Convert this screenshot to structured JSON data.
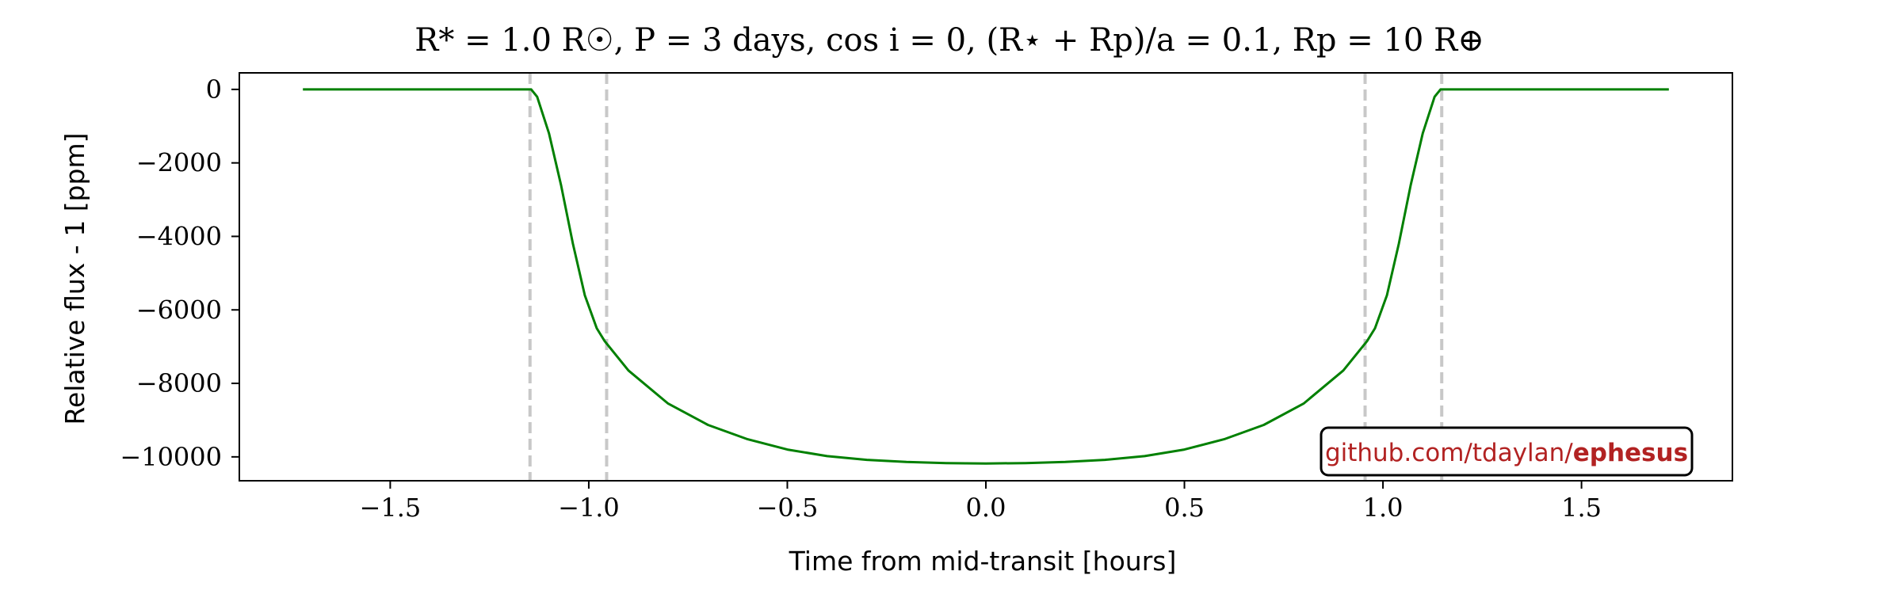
{
  "chart_data": {
    "type": "line",
    "title": "R* = 1.0 R☉, P = 3 days, cos i = 0, (R⋆ + Rp)/a = 0.1, Rp = 10 R⊕",
    "xlabel": "Time from mid-transit [hours]",
    "ylabel": "Relative flux - 1 [ppm]",
    "xlim": [
      -1.88,
      1.88
    ],
    "ylim": [
      -10650,
      450
    ],
    "x_ticks": [
      -1.5,
      -1.0,
      -0.5,
      0.0,
      0.5,
      1.0,
      1.5
    ],
    "x_tick_labels": [
      "−1.5",
      "−1.0",
      "−0.5",
      "0.0",
      "0.5",
      "1.0",
      "1.5"
    ],
    "y_ticks": [
      0,
      -2000,
      -4000,
      -6000,
      -8000,
      -10000
    ],
    "y_tick_labels": [
      "0",
      "−2000",
      "−4000",
      "−6000",
      "−8000",
      "−10000"
    ],
    "grid": false,
    "series": [
      {
        "color": "#008000",
        "x": [
          -1.72,
          -1.5,
          -1.3,
          -1.16,
          -1.145,
          -1.13,
          -1.1,
          -1.07,
          -1.04,
          -1.01,
          -0.98,
          -0.96,
          -0.9,
          -0.8,
          -0.7,
          -0.6,
          -0.5,
          -0.4,
          -0.3,
          -0.2,
          -0.1,
          0.0,
          0.1,
          0.2,
          0.3,
          0.4,
          0.5,
          0.6,
          0.7,
          0.8,
          0.9,
          0.96,
          0.98,
          1.01,
          1.04,
          1.07,
          1.1,
          1.13,
          1.145,
          1.16,
          1.3,
          1.5,
          1.72
        ],
        "y": [
          0,
          0,
          0,
          0,
          0,
          -200,
          -1200,
          -2600,
          -4200,
          -5600,
          -6500,
          -6850,
          -7650,
          -8550,
          -9130,
          -9520,
          -9800,
          -9980,
          -10080,
          -10140,
          -10170,
          -10180,
          -10170,
          -10140,
          -10080,
          -9980,
          -9800,
          -9520,
          -9130,
          -8550,
          -7650,
          -6850,
          -6500,
          -5600,
          -4200,
          -2600,
          -1200,
          -200,
          0,
          0,
          0,
          0,
          0
        ]
      }
    ],
    "vlines": {
      "x": [
        -1.148,
        -0.955,
        0.955,
        1.148
      ],
      "color": "#c8c8c8",
      "style": "dashed"
    },
    "watermark": {
      "prefix": "github.com/tdaylan/",
      "bold": "ephesus",
      "color": "#b22222"
    }
  }
}
